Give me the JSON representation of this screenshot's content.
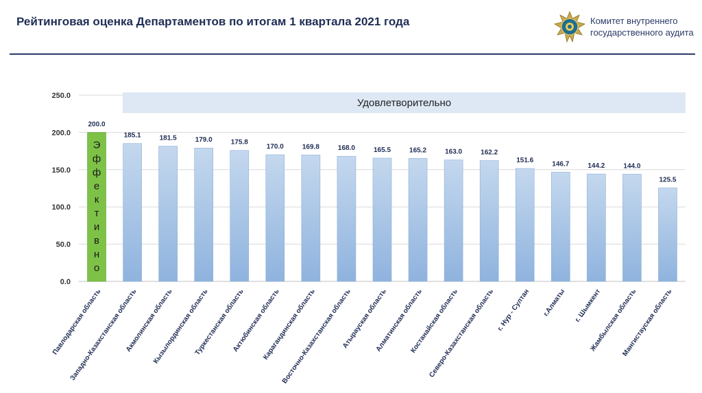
{
  "header": {
    "title": "Рейтинговая оценка Департаментов по итогам 1 квартала 2021 года",
    "org_line1": "Комитет внутреннего",
    "org_line2": "государственного аудита"
  },
  "colors": {
    "bar_top": "#c4d8ee",
    "bar_bottom": "#8fb3de",
    "highlight_bar": "#7dc247",
    "highlight_label": "#3aa23a",
    "band": "#dde8f4",
    "grid": "#d9d9d9"
  },
  "chart_data": {
    "type": "bar",
    "title": "",
    "xlabel": "",
    "ylabel": "",
    "ylim": [
      0,
      250
    ],
    "yticks": [
      0,
      50,
      100,
      150,
      200,
      250
    ],
    "ytick_labels": [
      "0.0",
      "50.0",
      "100.0",
      "150.0",
      "200.0",
      "250.0"
    ],
    "grid": true,
    "categories": [
      "Павлодарская область",
      "Западно-Казахстанская область",
      "Акмолинская область",
      "Кызылординская область",
      "Туркестанская область",
      "Актюбинская область",
      "Карагандинская область",
      "Восточно-Казахстанская область",
      "Атырауская область",
      "Алматинская область",
      "Костанайская область",
      "Северо-Казахстанская область",
      "г. Нур - Султан",
      "г.Алматы",
      "г. Шымкент",
      "Жамбылская область",
      "Мангистауская область"
    ],
    "values": [
      200.0,
      185.1,
      181.5,
      179.0,
      175.8,
      170.0,
      169.8,
      168.0,
      165.5,
      165.2,
      163.0,
      162.2,
      151.6,
      146.7,
      144.2,
      144.0,
      125.5
    ],
    "value_labels": [
      "200.0",
      "185.1",
      "181.5",
      "179.0",
      "175.8",
      "170.0",
      "169.8",
      "168.0",
      "165.5",
      "165.2",
      "163.0",
      "162.2",
      "151.6",
      "146.7",
      "144.2",
      "144.0",
      "125.5"
    ],
    "highlight_index": 0,
    "highlight_text": "Эффективно",
    "band": {
      "label": "Удовлетворительно",
      "from": 225,
      "to": 250
    }
  }
}
